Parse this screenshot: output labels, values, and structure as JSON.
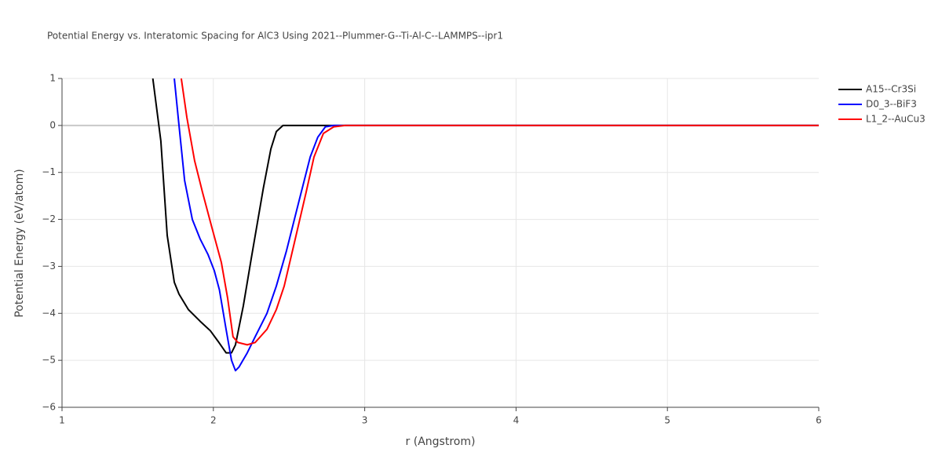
{
  "chart_data": {
    "type": "line",
    "title": "Potential Energy vs. Interatomic Spacing for AlC3 Using 2021--Plummer-G--Ti-Al-C--LAMMPS--ipr1",
    "x_label": "r (Angstrom)",
    "y_label": "Potential Energy (eV/atom)",
    "xlim": [
      1,
      6
    ],
    "ylim": [
      -6,
      1
    ],
    "xticks": [
      1,
      2,
      3,
      4,
      5,
      6
    ],
    "yticks": [
      {
        "value": -6,
        "label": "−6"
      },
      {
        "value": -5,
        "label": "−5"
      },
      {
        "value": -4,
        "label": "−4"
      },
      {
        "value": -3,
        "label": "−3"
      },
      {
        "value": -2,
        "label": "−2"
      },
      {
        "value": -1,
        "label": "−1"
      },
      0,
      1
    ],
    "grid": true,
    "legend": "top-right",
    "series": [
      {
        "name": "A15--Cr3Si",
        "color": "#000000",
        "x": [
          1.6,
          1.653,
          1.695,
          1.742,
          1.773,
          1.835,
          1.913,
          1.98,
          2.03,
          2.084,
          2.12,
          2.146,
          2.198,
          2.25,
          2.33,
          2.38,
          2.416,
          2.46,
          6
        ],
        "values": [
          1.0,
          -0.33,
          -2.34,
          -3.34,
          -3.59,
          -3.92,
          -4.17,
          -4.37,
          -4.59,
          -4.84,
          -4.84,
          -4.67,
          -3.84,
          -2.84,
          -1.34,
          -0.5,
          -0.13,
          0,
          0
        ]
      },
      {
        "name": "D0_3--BiF3",
        "color": "#0000ff",
        "x": [
          1.742,
          1.773,
          1.81,
          1.861,
          1.913,
          1.965,
          2.006,
          2.04,
          2.084,
          2.12,
          2.146,
          2.17,
          2.224,
          2.276,
          2.354,
          2.416,
          2.483,
          2.561,
          2.64,
          2.69,
          2.74,
          2.795,
          6
        ],
        "values": [
          1.0,
          0,
          -1.17,
          -2.0,
          -2.42,
          -2.75,
          -3.09,
          -3.5,
          -4.34,
          -5.0,
          -5.22,
          -5.14,
          -4.84,
          -4.5,
          -4.0,
          -3.42,
          -2.67,
          -1.67,
          -0.67,
          -0.25,
          -0.03,
          0,
          0
        ]
      },
      {
        "name": "L1_2--AuCu3",
        "color": "#ff0000",
        "x": [
          1.788,
          1.825,
          1.876,
          1.928,
          1.99,
          2.053,
          2.094,
          2.13,
          2.162,
          2.224,
          2.276,
          2.354,
          2.416,
          2.468,
          2.535,
          2.613,
          2.665,
          2.727,
          2.795,
          2.87,
          6
        ],
        "values": [
          1.0,
          0.17,
          -0.75,
          -1.42,
          -2.17,
          -2.92,
          -3.67,
          -4.5,
          -4.62,
          -4.67,
          -4.62,
          -4.34,
          -3.92,
          -3.42,
          -2.5,
          -1.42,
          -0.67,
          -0.17,
          -0.03,
          0,
          0
        ]
      }
    ]
  }
}
